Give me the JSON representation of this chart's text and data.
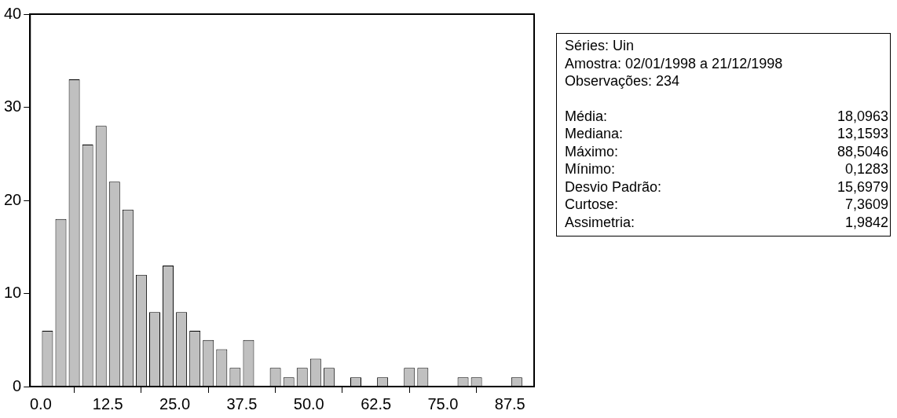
{
  "chart_data": {
    "type": "histogram",
    "bins": [
      0,
      2.5,
      5,
      7.5,
      10,
      12.5,
      15,
      17.5,
      20,
      22.5,
      25,
      27.5,
      30,
      32.5,
      35,
      37.5,
      40,
      42.5,
      45,
      47.5,
      50,
      52.5,
      55,
      57.5,
      60,
      62.5,
      65,
      67.5,
      70,
      72.5,
      75,
      77.5,
      80,
      82.5,
      85,
      87.5,
      90
    ],
    "values": [
      6,
      18,
      33,
      26,
      28,
      22,
      19,
      12,
      8,
      13,
      8,
      6,
      5,
      4,
      2,
      5,
      0,
      2,
      1,
      2,
      3,
      2,
      0,
      1,
      0,
      1,
      0,
      2,
      2,
      0,
      0,
      1,
      1,
      0,
      0,
      1
    ],
    "color": "#c0c0c0",
    "xlim": [
      -2,
      92
    ],
    "ylim": [
      0,
      40
    ],
    "xticks": [
      {
        "value": 0,
        "label": "0.0"
      },
      {
        "value": 12.5,
        "label": "12.5"
      },
      {
        "value": 25,
        "label": "25.0"
      },
      {
        "value": 37.5,
        "label": "37.5"
      },
      {
        "value": 50,
        "label": "50.0"
      },
      {
        "value": 62.5,
        "label": "62.5"
      },
      {
        "value": 75,
        "label": "75.0"
      },
      {
        "value": 87.5,
        "label": "87.5"
      }
    ],
    "yticks": [
      0,
      10,
      20,
      30,
      40
    ],
    "annotations": [
      "Séries: Uin",
      "Amostra: 02/01/1998 a 21/12/1998",
      "Observações: 234",
      "Média:",
      "18,0963",
      "Mediana:",
      "13,1593",
      "Máximo:",
      "88,5046",
      "Mínimo:",
      "0,1283",
      "Desvio Padrão:",
      "15,6979",
      "Curtose:",
      "7,3609",
      "Assimetria:",
      "1,9842"
    ]
  }
}
